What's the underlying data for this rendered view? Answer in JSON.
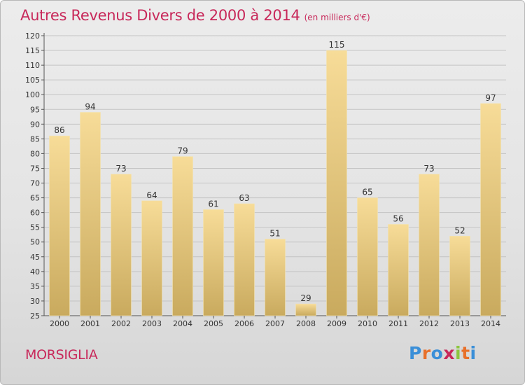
{
  "title": "Autres Revenus Divers de 2000 à 2014",
  "subtitle": "(en milliers d'€)",
  "location": "MORSIGLIA",
  "logo": {
    "text": "Proxiti",
    "letter_colors": [
      "#3a8fd8",
      "#e8702a",
      "#3a8fd8",
      "#c8285a",
      "#8cc63e",
      "#e8702a",
      "#3a8fd8"
    ]
  },
  "colors": {
    "title": "#c8285a",
    "bar_top": "#f7dc98",
    "bar_bottom": "#c9aa5e",
    "grid": "#c4c4c4",
    "axis": "#555555"
  },
  "chart_data": {
    "type": "bar",
    "title": "Autres Revenus Divers de 2000 à 2014",
    "subtitle": "(en milliers d'€)",
    "xlabel": "",
    "ylabel": "",
    "categories": [
      "2000",
      "2001",
      "2002",
      "2003",
      "2004",
      "2005",
      "2006",
      "2007",
      "2008",
      "2009",
      "2010",
      "2011",
      "2012",
      "2013",
      "2014"
    ],
    "values": [
      86,
      94,
      73,
      64,
      79,
      61,
      63,
      51,
      29,
      115,
      65,
      56,
      73,
      52,
      97
    ],
    "ylim": [
      25,
      120
    ],
    "yticks": [
      25,
      30,
      35,
      40,
      45,
      50,
      55,
      60,
      65,
      70,
      75,
      80,
      85,
      90,
      95,
      100,
      105,
      110,
      115,
      120
    ],
    "grid": true,
    "data_labels": true
  }
}
